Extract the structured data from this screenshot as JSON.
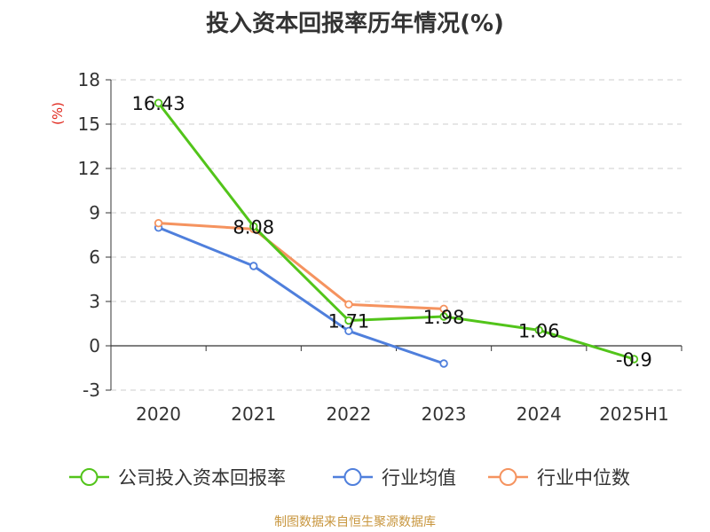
{
  "chart_data": {
    "type": "line",
    "title": "投入资本回报率历年情况(%)",
    "ylabel": "(%)",
    "categories": [
      "2020",
      "2021",
      "2022",
      "2023",
      "2024",
      "2025H1"
    ],
    "ylim": [
      -3,
      18
    ],
    "yticks": [
      -3,
      0,
      3,
      6,
      9,
      12,
      15,
      18
    ],
    "grid": true,
    "legend_position": "bottom",
    "series": [
      {
        "name": "公司投入资本回报率",
        "color": "#52c41a",
        "values": [
          16.43,
          8.08,
          1.71,
          1.98,
          1.06,
          -0.9
        ],
        "labels": [
          "16.43",
          "8.08",
          "1.71",
          "1.98",
          "1.06",
          "-0.9"
        ]
      },
      {
        "name": "行业均值",
        "color": "#4f7fdc",
        "values": [
          8.0,
          5.4,
          1.0,
          -1.2,
          null,
          null
        ]
      },
      {
        "name": "行业中位数",
        "color": "#f5935f",
        "values": [
          8.3,
          7.9,
          2.8,
          2.5,
          null,
          null
        ]
      }
    ]
  },
  "source": "制图数据来自恒生聚源数据库",
  "colors": {
    "title": "#333333",
    "ylabel": "#e0261b",
    "source": "#c8963e",
    "grid": "#cccccc",
    "axis": "#333333"
  }
}
